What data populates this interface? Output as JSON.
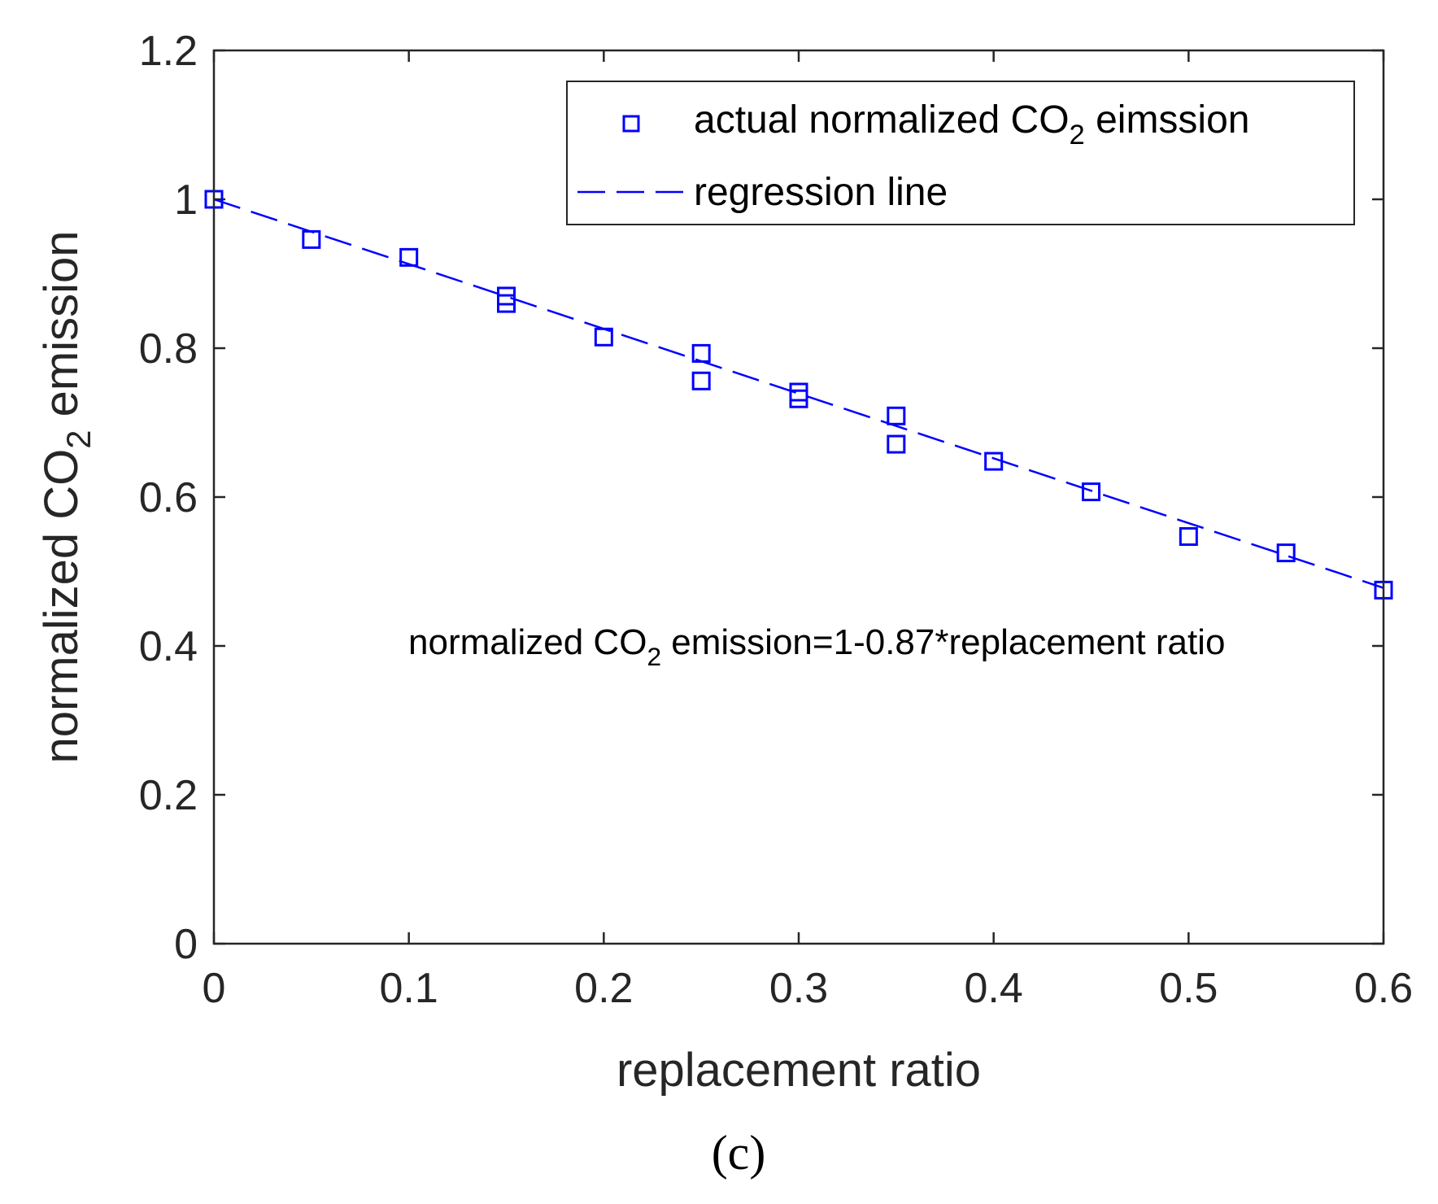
{
  "chart_data": {
    "type": "scatter",
    "panel_label": "(c)",
    "xlabel": "replacement ratio",
    "ylabel": {
      "main": "normalized CO",
      "sub": "2",
      "tail": " emission"
    },
    "xlim": [
      0,
      0.6
    ],
    "ylim": [
      0,
      1.2
    ],
    "xticks": [
      {
        "value": 0,
        "label": "0"
      },
      {
        "value": 0.1,
        "label": "0.1"
      },
      {
        "value": 0.2,
        "label": "0.2"
      },
      {
        "value": 0.3,
        "label": "0.3"
      },
      {
        "value": 0.4,
        "label": "0.4"
      },
      {
        "value": 0.5,
        "label": "0.5"
      },
      {
        "value": 0.6,
        "label": "0.6"
      }
    ],
    "yticks": [
      {
        "value": 0,
        "label": "0"
      },
      {
        "value": 0.2,
        "label": "0.2"
      },
      {
        "value": 0.4,
        "label": "0.4"
      },
      {
        "value": 0.6,
        "label": "0.6"
      },
      {
        "value": 0.8,
        "label": "0.8"
      },
      {
        "value": 1.0,
        "label": "1"
      },
      {
        "value": 1.2,
        "label": "1.2"
      }
    ],
    "series": [
      {
        "name": "actual normalized CO2 eimssion",
        "kind": "scatter",
        "marker": "square",
        "color": "#0000FF",
        "points": [
          [
            0,
            1.0
          ],
          [
            0.05,
            0.946
          ],
          [
            0.1,
            0.922
          ],
          [
            0.15,
            0.87
          ],
          [
            0.15,
            0.86
          ],
          [
            0.2,
            0.815
          ],
          [
            0.25,
            0.793
          ],
          [
            0.25,
            0.756
          ],
          [
            0.3,
            0.741
          ],
          [
            0.3,
            0.732
          ],
          [
            0.35,
            0.709
          ],
          [
            0.35,
            0.671
          ],
          [
            0.4,
            0.648
          ],
          [
            0.45,
            0.607
          ],
          [
            0.5,
            0.547
          ],
          [
            0.55,
            0.525
          ],
          [
            0.6,
            0.475
          ]
        ]
      },
      {
        "name": "regression line",
        "kind": "line",
        "style": "dashed",
        "color": "#0000FF",
        "intercept": 1,
        "slope": -0.87,
        "x_range": [
          0,
          0.6
        ]
      }
    ],
    "legend": {
      "position": "top-right",
      "entries": [
        {
          "main": "actual normalized CO",
          "sub": "2",
          "tail": " eimssion"
        },
        {
          "main": "regression line",
          "sub": "",
          "tail": ""
        }
      ]
    },
    "annotation": {
      "main": "normalized CO",
      "sub": "2",
      "tail": " emission=1-0.87*replacement ratio"
    }
  }
}
